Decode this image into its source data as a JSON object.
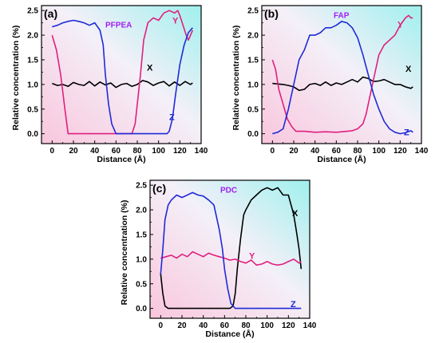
{
  "colors": {
    "X": "#000000",
    "Y": "#e0207e",
    "Z": "#1f2bd6",
    "annotation": "#a020f0",
    "bg_pink": "#f9c6dd",
    "bg_cyan": "#9ff0ee"
  },
  "chart_data": [
    {
      "type": "line",
      "panel_label": "(a)",
      "annotation": "PFPEA",
      "xlabel": "Distance (Å)",
      "ylabel": "Relative concentration (%)",
      "xlim": [
        -10,
        140
      ],
      "ylim": [
        -0.2,
        2.6
      ],
      "xticks": [
        "0",
        "20",
        "40",
        "60",
        "80",
        "100",
        "120",
        "140"
      ],
      "yticks": [
        "0.0",
        "0.5",
        "1.0",
        "1.5",
        "2.0",
        "2.5"
      ],
      "series": [
        {
          "name": "X",
          "x": [
            0,
            5,
            10,
            15,
            20,
            25,
            30,
            35,
            40,
            45,
            50,
            55,
            60,
            65,
            70,
            75,
            80,
            85,
            90,
            95,
            100,
            105,
            110,
            115,
            120,
            125,
            130,
            132
          ],
          "y": [
            1.02,
            0.98,
            1.0,
            0.96,
            1.04,
            1.0,
            0.98,
            1.06,
            0.97,
            1.05,
            0.99,
            1.03,
            0.94,
            1.0,
            1.02,
            0.96,
            1.0,
            1.08,
            1.05,
            0.98,
            1.03,
            1.06,
            0.97,
            1.05,
            0.98,
            1.06,
            1.0,
            1.03
          ]
        },
        {
          "name": "Y",
          "x": [
            0,
            4,
            8,
            12,
            15,
            20,
            30,
            40,
            50,
            60,
            70,
            75,
            78,
            80,
            83,
            86,
            90,
            95,
            100,
            105,
            110,
            115,
            118,
            120,
            123,
            126,
            128,
            130,
            132
          ],
          "y": [
            2.0,
            1.7,
            1.2,
            0.5,
            0.0,
            0.0,
            0.0,
            0.0,
            0.0,
            0.0,
            0.0,
            0.0,
            0.2,
            0.6,
            1.2,
            1.9,
            2.25,
            2.35,
            2.3,
            2.45,
            2.5,
            2.45,
            2.5,
            2.4,
            2.2,
            2.0,
            1.9,
            2.0,
            2.1
          ]
        },
        {
          "name": "Z",
          "x": [
            0,
            5,
            10,
            15,
            20,
            25,
            30,
            35,
            40,
            45,
            48,
            50,
            53,
            56,
            60,
            65,
            70,
            75,
            80,
            85,
            90,
            95,
            100,
            105,
            108,
            110,
            113,
            116,
            120,
            124,
            128,
            132
          ],
          "y": [
            2.17,
            2.2,
            2.25,
            2.28,
            2.3,
            2.28,
            2.25,
            2.2,
            2.25,
            2.1,
            1.8,
            1.2,
            0.6,
            0.2,
            0.0,
            0.0,
            0.0,
            0.0,
            0.0,
            0.0,
            0.0,
            0.0,
            0.0,
            0.0,
            0.0,
            0.05,
            0.3,
            0.8,
            1.4,
            1.8,
            2.05,
            2.15
          ]
        }
      ]
    },
    {
      "type": "line",
      "panel_label": "(b)",
      "annotation": "FAP",
      "xlabel": "Distance (Å)",
      "ylabel": "Relative concentration (%)",
      "xlim": [
        -10,
        140
      ],
      "ylim": [
        -0.2,
        2.6
      ],
      "xticks": [
        "0",
        "20",
        "40",
        "60",
        "80",
        "100",
        "120",
        "140"
      ],
      "yticks": [
        "0.0",
        "0.5",
        "1.0",
        "1.5",
        "2.0",
        "2.5"
      ],
      "series": [
        {
          "name": "X",
          "x": [
            0,
            10,
            15,
            20,
            25,
            30,
            35,
            40,
            45,
            50,
            55,
            60,
            65,
            70,
            75,
            80,
            85,
            90,
            95,
            100,
            105,
            110,
            115,
            120,
            125,
            130,
            132
          ],
          "y": [
            1.02,
            1.0,
            0.98,
            0.95,
            0.88,
            0.9,
            1.0,
            1.02,
            0.98,
            1.05,
            0.98,
            1.03,
            1.0,
            1.05,
            1.1,
            1.05,
            1.15,
            1.12,
            1.06,
            1.07,
            1.1,
            1.05,
            1.0,
            1.0,
            0.95,
            0.92,
            0.95
          ]
        },
        {
          "name": "Y",
          "x": [
            0,
            3,
            6,
            10,
            14,
            18,
            22,
            30,
            40,
            50,
            60,
            70,
            75,
            80,
            85,
            88,
            92,
            96,
            100,
            105,
            110,
            115,
            120,
            125,
            128,
            130,
            132
          ],
          "y": [
            1.5,
            1.3,
            0.9,
            0.6,
            0.3,
            0.15,
            0.05,
            0.05,
            0.03,
            0.04,
            0.03,
            0.05,
            0.06,
            0.1,
            0.2,
            0.4,
            0.8,
            1.2,
            1.6,
            1.8,
            1.9,
            2.0,
            2.2,
            2.35,
            2.4,
            2.35,
            2.35
          ]
        },
        {
          "name": "Z",
          "x": [
            0,
            5,
            10,
            15,
            20,
            25,
            30,
            35,
            40,
            45,
            50,
            55,
            60,
            65,
            70,
            75,
            80,
            85,
            90,
            95,
            100,
            105,
            110,
            115,
            120,
            125,
            130,
            132
          ],
          "y": [
            0.0,
            0.03,
            0.1,
            0.5,
            1.0,
            1.5,
            1.7,
            2.0,
            2.0,
            2.05,
            2.15,
            2.15,
            2.2,
            2.28,
            2.25,
            2.15,
            1.95,
            1.6,
            1.2,
            0.8,
            0.5,
            0.25,
            0.1,
            0.03,
            0.0,
            0.02,
            0.06,
            0.03
          ]
        }
      ]
    },
    {
      "type": "line",
      "panel_label": "(c)",
      "annotation": "PDC",
      "xlabel": "Distance (Å)",
      "ylabel": "Relative concentration (%)",
      "xlim": [
        -10,
        140
      ],
      "ylim": [
        -0.2,
        2.6
      ],
      "xticks": [
        "0",
        "20",
        "40",
        "60",
        "80",
        "100",
        "120",
        "140"
      ],
      "yticks": [
        "0.0",
        "0.5",
        "1.0",
        "1.5",
        "2.0",
        "2.5"
      ],
      "series": [
        {
          "name": "X",
          "x": [
            0,
            2,
            4,
            7,
            10,
            20,
            30,
            40,
            50,
            60,
            65,
            68,
            70,
            72,
            75,
            78,
            80,
            85,
            90,
            95,
            100,
            105,
            110,
            115,
            120,
            125,
            128,
            130,
            132
          ],
          "y": [
            0.7,
            0.3,
            0.05,
            0.0,
            0.0,
            0.0,
            0.0,
            0.0,
            0.0,
            0.0,
            0.0,
            0.05,
            0.3,
            0.8,
            1.4,
            1.9,
            2.0,
            2.2,
            2.3,
            2.4,
            2.45,
            2.4,
            2.45,
            2.3,
            2.3,
            1.9,
            1.5,
            1.2,
            0.8
          ]
        },
        {
          "name": "Y",
          "x": [
            0,
            5,
            10,
            15,
            20,
            25,
            30,
            35,
            40,
            45,
            50,
            55,
            60,
            65,
            70,
            75,
            80,
            85,
            90,
            95,
            100,
            105,
            110,
            115,
            120,
            125,
            130,
            132
          ],
          "y": [
            1.02,
            1.05,
            1.08,
            1.02,
            1.1,
            1.05,
            1.15,
            1.1,
            1.05,
            1.12,
            1.08,
            1.05,
            1.02,
            0.98,
            1.0,
            0.95,
            0.92,
            0.98,
            0.88,
            0.9,
            0.95,
            0.9,
            0.88,
            0.9,
            0.95,
            1.0,
            0.92,
            0.95
          ]
        },
        {
          "name": "Z",
          "x": [
            0,
            2,
            4,
            7,
            10,
            15,
            20,
            25,
            30,
            35,
            40,
            45,
            50,
            55,
            58,
            60,
            63,
            66,
            70,
            75,
            80,
            90,
            100,
            110,
            120,
            130,
            132
          ],
          "y": [
            0.7,
            1.2,
            1.8,
            2.1,
            2.2,
            2.3,
            2.25,
            2.3,
            2.35,
            2.3,
            2.28,
            2.2,
            2.1,
            1.6,
            1.2,
            0.8,
            0.4,
            0.1,
            0.0,
            0.0,
            0.0,
            0.0,
            0.0,
            0.0,
            0.0,
            0.0,
            0.0
          ]
        }
      ]
    }
  ]
}
